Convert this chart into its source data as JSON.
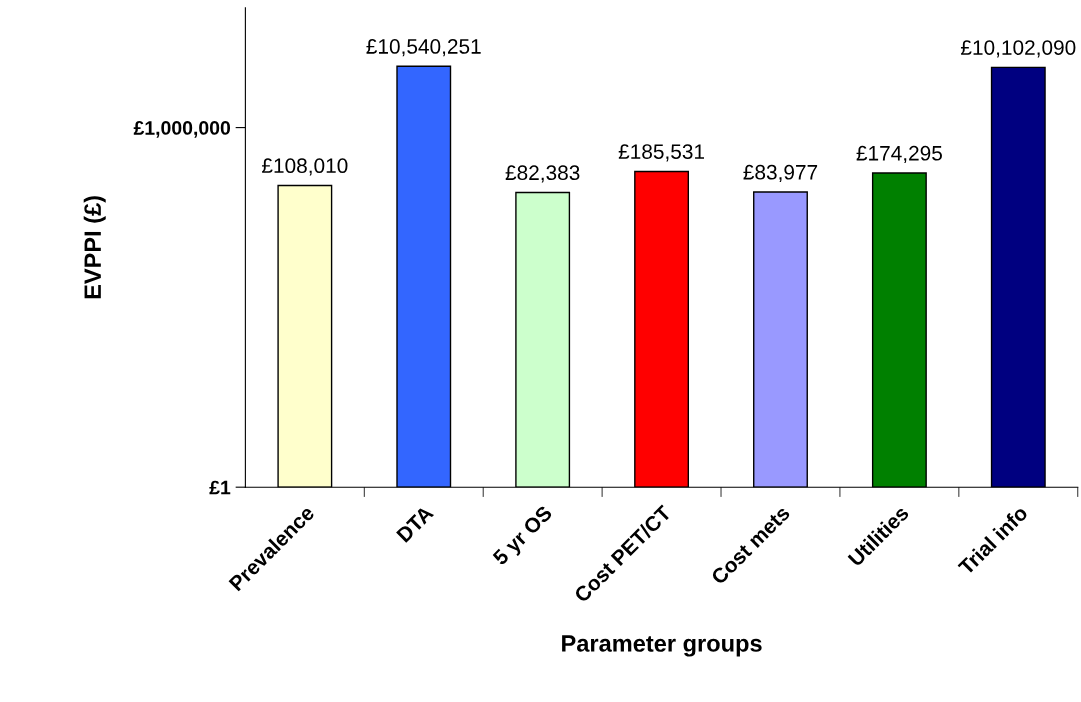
{
  "chart_data": {
    "type": "bar",
    "xlabel": "Parameter groups",
    "ylabel": "EVPPI (£)",
    "categories": [
      "Prevalence",
      "DTA",
      "5 yr OS",
      "Cost PET/CT",
      "Cost mets",
      "Utilities",
      "Trial info"
    ],
    "values": [
      108010,
      10540251,
      82383,
      185531,
      83977,
      174295,
      10102090
    ],
    "colors": [
      "#ffffcc",
      "#3366ff",
      "#ccffcc",
      "#ff0000",
      "#9999ff",
      "#008000",
      "#000080"
    ],
    "value_labels": [
      "£108,010",
      "£10,540,251",
      "£82,383",
      "£185,531",
      "£83,977",
      "£174,295",
      "£10,102,090"
    ],
    "log": "y",
    "ylim": [
      1,
      100000000
    ],
    "yticks": [
      {
        "value": 1,
        "label": "£1"
      },
      {
        "value": 1000000,
        "label": "£1,000,000"
      }
    ],
    "grid": false,
    "legend": false
  }
}
